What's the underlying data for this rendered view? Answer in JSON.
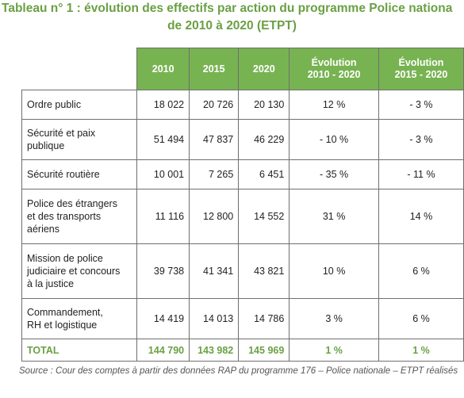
{
  "title": {
    "line1": "Tableau n° 1 : évolution des effectifs par action du programme Police nationa",
    "line2": "de 2010 à 2020 (ETPT)"
  },
  "table": {
    "headers": [
      "2010",
      "2015",
      "2020",
      "Évolution\n2010 - 2020",
      "Évolution\n2015 - 2020"
    ],
    "rows": [
      {
        "label": "Ordre public",
        "v2010": "18 022",
        "v2015": "20 726",
        "v2020": "20 130",
        "e1": "12 %",
        "e2": "- 3 %"
      },
      {
        "label": "Sécurité et paix\npublique",
        "v2010": "51 494",
        "v2015": "47 837",
        "v2020": "46 229",
        "e1": "- 10 %",
        "e2": "- 3 %"
      },
      {
        "label": "Sécurité routière",
        "v2010": "10 001",
        "v2015": "7 265",
        "v2020": "6 451",
        "e1": "- 35 %",
        "e2": "- 11 %"
      },
      {
        "label": "Police des étrangers\net des transports\naériens",
        "v2010": "11 116",
        "v2015": "12 800",
        "v2020": "14 552",
        "e1": "31 %",
        "e2": "14 %"
      },
      {
        "label": "Mission de police\njudiciaire et concours\nà la justice",
        "v2010": "39 738",
        "v2015": "41 341",
        "v2020": "43 821",
        "e1": "10 %",
        "e2": "6 %"
      },
      {
        "label": "Commandement,\nRH et logistique",
        "v2010": "14 419",
        "v2015": "14 013",
        "v2020": "14 786",
        "e1": "3 %",
        "e2": "6 %"
      }
    ],
    "total": {
      "label": "TOTAL",
      "v2010": "144 790",
      "v2015": "143 982",
      "v2020": "145 969",
      "e1": "1 %",
      "e2": "1 %"
    }
  },
  "source": "Source : Cour des comptes à partir des données RAP du programme 176 – Police nationale – ETPT réalisés"
}
